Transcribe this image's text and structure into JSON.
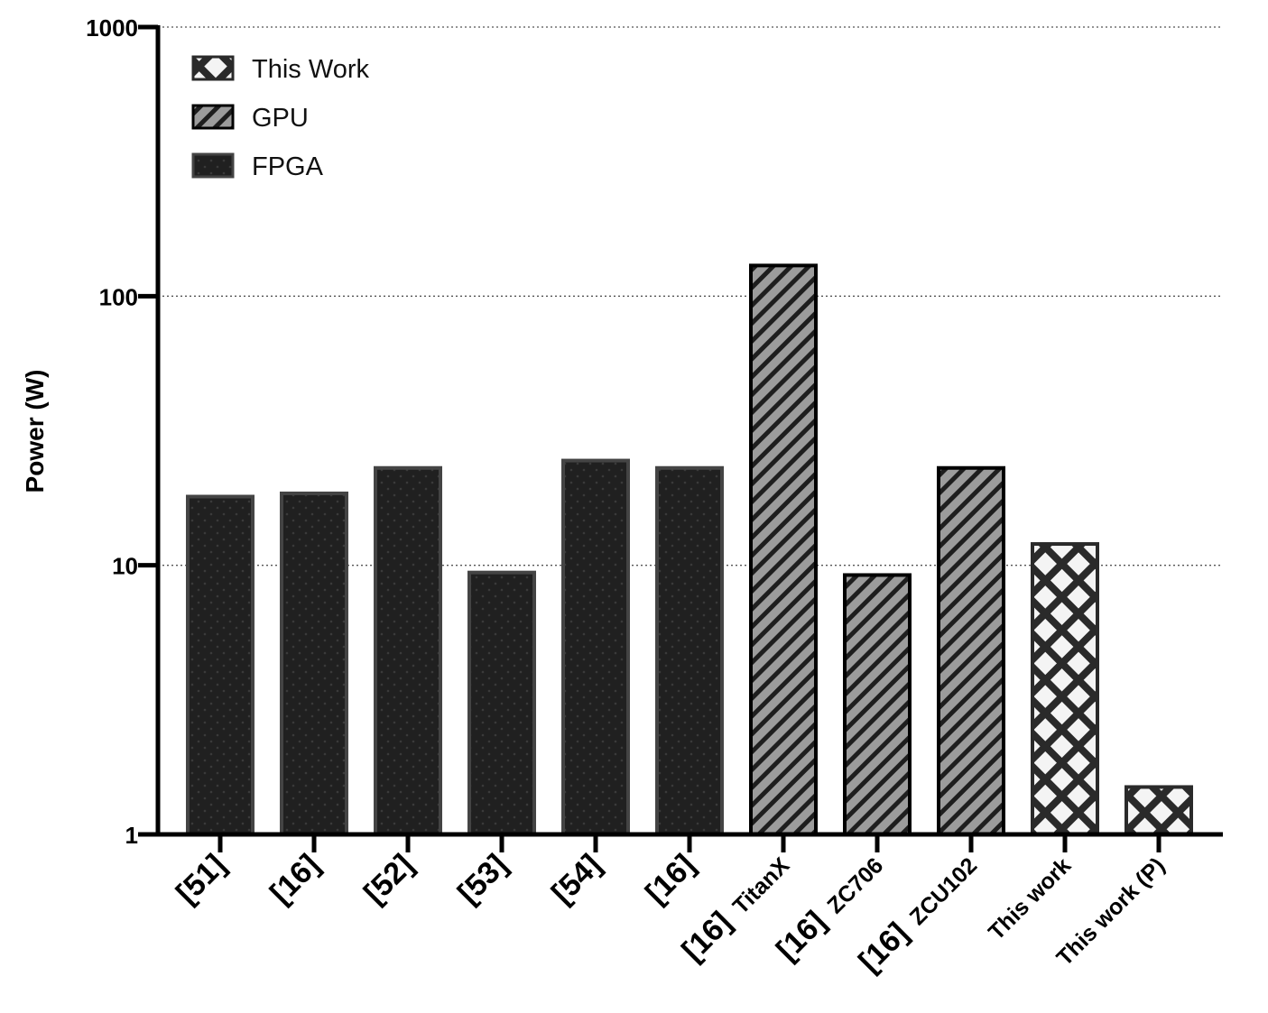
{
  "chart_data": {
    "type": "bar",
    "title": "",
    "xlabel": "",
    "ylabel": "Power (W)",
    "yscale": "log",
    "ylim": [
      1,
      1000
    ],
    "yticks": [
      "1",
      "10",
      "100",
      "1000"
    ],
    "grid": "horizontal dotted at 10, 100, 1000",
    "legend_position": "top-left",
    "legend": [
      {
        "name": "This Work",
        "pattern": "crosshatch",
        "color": "#f2f2f2"
      },
      {
        "name": "GPU",
        "pattern": "diagonal",
        "color": "#9a9a9a"
      },
      {
        "name": "FPGA",
        "pattern": "dotted",
        "color": "#222222"
      }
    ],
    "categories": [
      {
        "ref": "[51]",
        "note": ""
      },
      {
        "ref": "[16]",
        "note": ""
      },
      {
        "ref": "[52]",
        "note": ""
      },
      {
        "ref": "[53]",
        "note": ""
      },
      {
        "ref": "[54]",
        "note": ""
      },
      {
        "ref": "[16]",
        "note": ""
      },
      {
        "ref": "[16]",
        "note": "TitanX"
      },
      {
        "ref": "[16]",
        "note": "ZC706"
      },
      {
        "ref": "[16]",
        "note": "ZCU102"
      },
      {
        "ref": "",
        "note": "This work"
      },
      {
        "ref": "",
        "note": "This work (P)"
      }
    ],
    "values": [
      18,
      18.5,
      23,
      9.4,
      24.5,
      23,
      130,
      9.2,
      23,
      12,
      1.5
    ],
    "bar_groups": [
      "FPGA",
      "FPGA",
      "FPGA",
      "FPGA",
      "FPGA",
      "FPGA",
      "GPU",
      "GPU",
      "GPU",
      "This Work",
      "This Work"
    ]
  }
}
